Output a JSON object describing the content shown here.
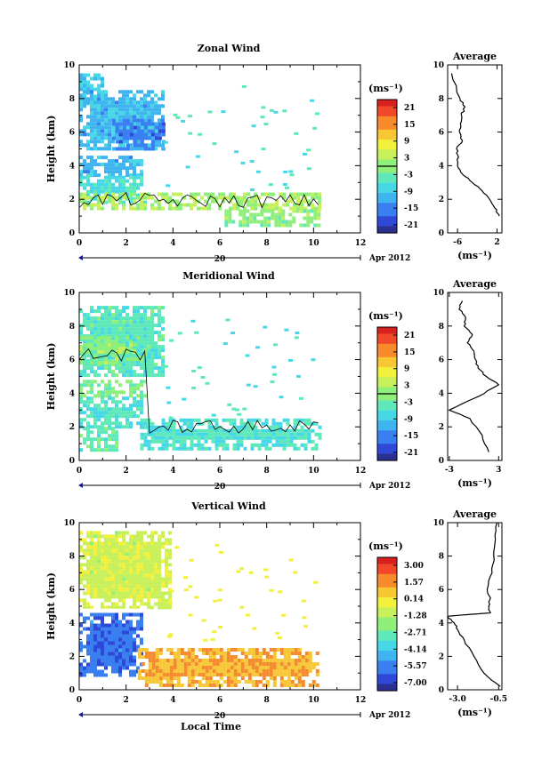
{
  "panels": [
    {
      "title": "Zonal Wind",
      "ylabel": "Height (km)",
      "ylim": [
        0,
        10
      ],
      "yticks": [
        "0",
        "2",
        "4",
        "6",
        "8",
        "10"
      ],
      "xlim": [
        0,
        12
      ],
      "xticks": [
        "0",
        "2",
        "4",
        "6",
        "8",
        "10",
        "12"
      ],
      "date_day": "20",
      "date_label": "Apr 2012",
      "unit": "(ms⁻¹)",
      "colorbar_ticks": [
        "21",
        "15",
        "9",
        "3",
        "-3",
        "-9",
        "-15",
        "-21"
      ],
      "avg_title": "Average",
      "avg_xticks": [
        "-6",
        "2"
      ],
      "avg_xlim": [
        -8,
        3
      ],
      "avg_unit": "(ms⁻¹)"
    },
    {
      "title": "Meridional Wind",
      "ylabel": "Height (km)",
      "ylim": [
        0,
        10
      ],
      "yticks": [
        "0",
        "2",
        "4",
        "6",
        "8",
        "10"
      ],
      "xlim": [
        0,
        12
      ],
      "xticks": [
        "0",
        "2",
        "4",
        "6",
        "8",
        "10",
        "12"
      ],
      "date_day": "20",
      "date_label": "Apr 2012",
      "unit": "(ms⁻¹)",
      "colorbar_ticks": [
        "21",
        "15",
        "9",
        "3",
        "-3",
        "-9",
        "-15",
        "-21"
      ],
      "avg_title": "Average",
      "avg_xticks": [
        "-3",
        "3"
      ],
      "avg_xlim": [
        -3.2,
        3.4
      ],
      "avg_unit": "(ms⁻¹)"
    },
    {
      "title": "Vertical Wind",
      "ylabel": "Height (km)",
      "ylim": [
        0,
        10
      ],
      "yticks": [
        "0",
        "2",
        "4",
        "6",
        "8",
        "10"
      ],
      "xlim": [
        0,
        12
      ],
      "xticks": [
        "0",
        "2",
        "4",
        "6",
        "8",
        "10",
        "12"
      ],
      "date_day": "20",
      "date_label": "Apr 2012",
      "unit": "(ms⁻¹)",
      "colorbar_ticks": [
        "3.00",
        "1.57",
        "0.14",
        "-1.28",
        "-2.71",
        "-4.14",
        "-5.57",
        "-7.00"
      ],
      "avg_title": "Average",
      "avg_xticks": [
        "-3.0",
        "-0.5"
      ],
      "avg_xlim": [
        -3.6,
        -0.3
      ],
      "avg_unit": "(ms⁻¹)",
      "xlabel": "Local Time"
    }
  ],
  "colors": {
    "palette": [
      "#2b2f8f",
      "#2e48d8",
      "#3a7ff0",
      "#3fb4f0",
      "#46d8e6",
      "#5fe8b8",
      "#8ef07a",
      "#c8f05a",
      "#f2f03c",
      "#f8c832",
      "#f88a2c",
      "#f04828",
      "#d8201e"
    ],
    "blue_dark": "#2e48d8",
    "blue_mid": "#3a8ff0",
    "cyan": "#46c8f0",
    "aqua": "#5fe8c8",
    "green_light": "#8ef07a",
    "yellow_green": "#d8f870"
  },
  "chart_data": [
    {
      "type": "heatmap",
      "title": "Zonal Wind",
      "ylabel": "Height (km)",
      "xlim": [
        0,
        12
      ],
      "ylim": [
        0,
        10
      ],
      "regions": [
        {
          "x": [
            0,
            1.0
          ],
          "y": [
            7.7,
            9.5
          ],
          "value": -8
        },
        {
          "x": [
            0,
            3.6
          ],
          "y": [
            5.0,
            8.5
          ],
          "value": -10
        },
        {
          "x": [
            1.4,
            3.6
          ],
          "y": [
            5.0,
            6.8
          ],
          "value": -14
        },
        {
          "x": [
            0,
            2.7
          ],
          "y": [
            3.5,
            4.6
          ],
          "value": -10
        },
        {
          "x": [
            0,
            2.8
          ],
          "y": [
            1.8,
            3.4
          ],
          "value": -6
        },
        {
          "x": [
            0,
            10.2
          ],
          "y": [
            1.4,
            2.4
          ],
          "value": 2
        },
        {
          "x": [
            6.2,
            10.2
          ],
          "y": [
            0.4,
            1.4
          ],
          "value": 0
        }
      ],
      "average_profile": {
        "x": [
          2.5,
          1.5,
          0.5,
          -1.0,
          -3.0,
          -5.0,
          -6.0,
          -5.8,
          -6.2,
          -5.0,
          -5.6,
          -5.4,
          -5.2,
          -4.5,
          -5.5,
          -7.2
        ],
        "y": [
          1.0,
          1.5,
          2.0,
          2.5,
          3.0,
          3.5,
          4.0,
          4.5,
          5.0,
          5.5,
          6.0,
          6.5,
          7.0,
          7.5,
          8.0,
          9.5
        ]
      }
    },
    {
      "type": "heatmap",
      "title": "Meridional Wind",
      "ylabel": "Height (km)",
      "xlim": [
        0,
        12
      ],
      "ylim": [
        0,
        10
      ],
      "regions": [
        {
          "x": [
            0,
            3.6
          ],
          "y": [
            5.0,
            9.2
          ],
          "value": -4
        },
        {
          "x": [
            0,
            2.5
          ],
          "y": [
            5.8,
            7.4
          ],
          "value": 0
        },
        {
          "x": [
            0,
            2.8
          ],
          "y": [
            3.8,
            4.8
          ],
          "value": -1
        },
        {
          "x": [
            0,
            2.6
          ],
          "y": [
            2.0,
            3.8
          ],
          "value": -5
        },
        {
          "x": [
            0,
            1.6
          ],
          "y": [
            0.6,
            2.0
          ],
          "value": -3
        },
        {
          "x": [
            2.6,
            10.2
          ],
          "y": [
            0.6,
            2.5
          ],
          "value": -5
        }
      ],
      "average_profile": {
        "x": [
          1.8,
          1.0,
          -0.5,
          -3.0,
          0.5,
          3.0,
          1.5,
          0.5,
          0.2,
          0.0,
          -0.8,
          -0.2,
          -1.2,
          -1.0,
          -1.8,
          -1.4
        ],
        "y": [
          0.5,
          1.5,
          2.5,
          3.0,
          3.8,
          4.5,
          5.0,
          5.5,
          6.0,
          6.5,
          7.0,
          7.5,
          8.0,
          8.5,
          9.0,
          9.5
        ]
      }
    },
    {
      "type": "heatmap",
      "title": "Vertical Wind",
      "ylabel": "Height (km)",
      "xlabel": "Local Time",
      "xlim": [
        0,
        12
      ],
      "ylim": [
        0,
        10
      ],
      "regions": [
        {
          "x": [
            0,
            3.8
          ],
          "y": [
            5.0,
            9.5
          ],
          "value": -1.0
        },
        {
          "x": [
            0,
            2.7
          ],
          "y": [
            0.8,
            4.6
          ],
          "value": -5.5
        },
        {
          "x": [
            2.5,
            10.2
          ],
          "y": [
            0.2,
            2.5
          ],
          "value": 0.8
        }
      ],
      "average_profile": {
        "x": [
          -0.4,
          -1.4,
          -2.0,
          -2.6,
          -3.0,
          -3.2,
          -3.6,
          -1.0,
          -1.1,
          -1.0,
          -1.2,
          -0.9,
          -0.8,
          -0.7,
          -0.6
        ],
        "y": [
          0.2,
          1.0,
          2.0,
          3.0,
          3.6,
          4.0,
          4.4,
          4.6,
          5.0,
          5.5,
          6.0,
          7.0,
          8.0,
          9.0,
          10.0
        ]
      }
    }
  ]
}
